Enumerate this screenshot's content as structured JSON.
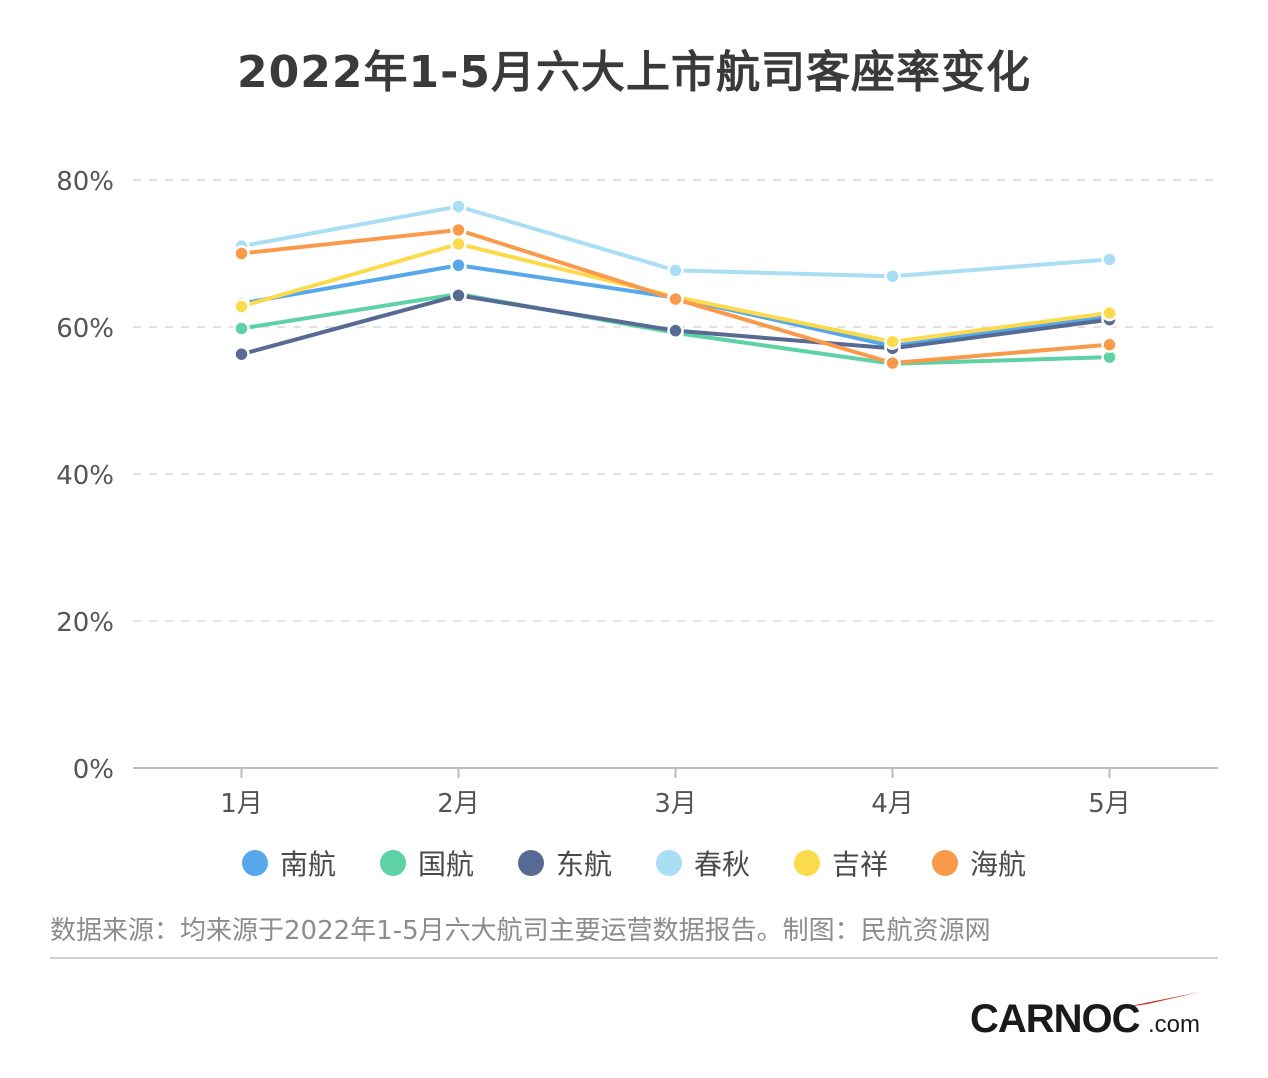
{
  "title": "2022年1-5月六大上市航司客座率变化",
  "source_text": "数据来源：均来源于2022年1-5月六大航司主要运营数据报告。制图：民航资源网",
  "logo": {
    "main": "CARNOC",
    "suffix": ".com",
    "accent_color": "#d0342c"
  },
  "chart_data": {
    "type": "line",
    "title": "2022年1-5月六大上市航司客座率变化",
    "categories": [
      "1月",
      "2月",
      "3月",
      "4月",
      "5月"
    ],
    "ylim": [
      0,
      80
    ],
    "yticks": [
      "0%",
      "20%",
      "40%",
      "60%",
      "80%"
    ],
    "ytick_values": [
      0,
      20,
      40,
      60,
      80
    ],
    "grid": true,
    "legend_position": "bottom",
    "series": [
      {
        "name": "南航",
        "color": "#56a8eb",
        "values": [
          63.2,
          68.4,
          64.0,
          57.4,
          61.5
        ]
      },
      {
        "name": "国航",
        "color": "#5ed1a5",
        "values": [
          59.8,
          64.5,
          59.2,
          55.0,
          55.9
        ]
      },
      {
        "name": "东航",
        "color": "#566a94",
        "values": [
          56.3,
          64.3,
          59.5,
          57.1,
          61.0
        ]
      },
      {
        "name": "春秋",
        "color": "#a9def5",
        "values": [
          71.0,
          76.4,
          67.7,
          66.9,
          69.2
        ]
      },
      {
        "name": "吉祥",
        "color": "#fbdb4c",
        "values": [
          62.8,
          71.3,
          64.1,
          58.0,
          61.9
        ]
      },
      {
        "name": "海航",
        "color": "#f99a4b",
        "values": [
          70.0,
          73.2,
          63.8,
          55.1,
          57.6
        ]
      }
    ]
  }
}
